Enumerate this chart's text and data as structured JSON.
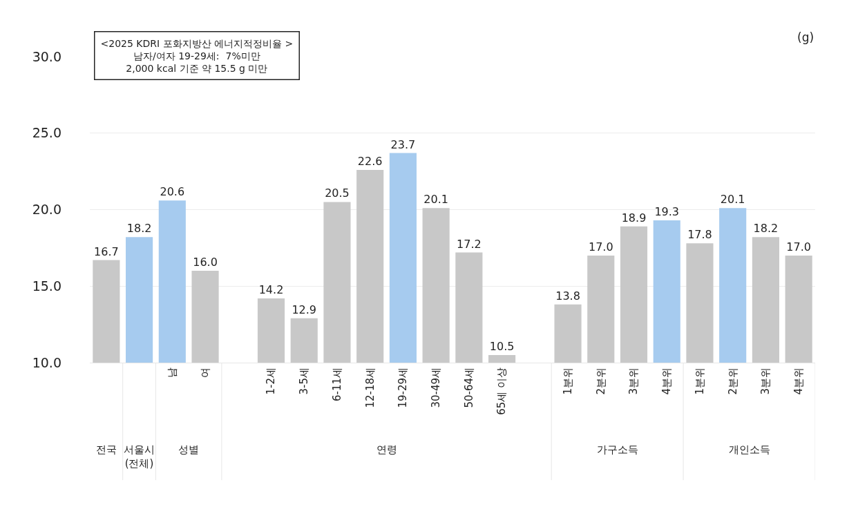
{
  "chart_data": {
    "type": "bar",
    "ylabel": "(g)",
    "categories": [
      null,
      null,
      "남",
      "여",
      null,
      "1-2세",
      "3-5세",
      "6-11세",
      "12-18세",
      "19-29세",
      "30-49세",
      "50-64세",
      "65세 이상",
      null,
      "1분위",
      "2분위",
      "3분위",
      "4분위",
      "1분위",
      "2분위",
      "3분위",
      "4분위"
    ],
    "values": [
      16.7,
      18.2,
      20.6,
      16.0,
      null,
      14.2,
      12.9,
      20.5,
      22.6,
      23.7,
      20.1,
      17.2,
      10.5,
      null,
      13.8,
      17.0,
      18.9,
      19.3,
      17.8,
      20.1,
      18.2,
      17.0
    ],
    "value_labels": [
      "16.7",
      "18.2",
      "20.6",
      "16.0",
      null,
      "14.2",
      "12.9",
      "20.5",
      "22.6",
      "23.7",
      "20.1",
      "17.2",
      "10.5",
      null,
      "13.8",
      "17.0",
      "18.9",
      "19.3",
      "17.8",
      "20.1",
      "18.2",
      "17.0"
    ],
    "colors": [
      "#c8c8c8",
      "#a6cbef",
      "#a6cbef",
      "#c8c8c8",
      "#c8c8c8",
      "#c8c8c8",
      "#c8c8c8",
      "#c8c8c8",
      "#c8c8c8",
      "#a6cbef",
      "#c8c8c8",
      "#c8c8c8",
      "#c8c8c8",
      "#c8c8c8",
      "#c8c8c8",
      "#c8c8c8",
      "#c8c8c8",
      "#a6cbef",
      "#c8c8c8",
      "#a6cbef",
      "#c8c8c8",
      "#c8c8c8"
    ],
    "ylim": [
      10,
      30
    ],
    "yticks": [
      {
        "value": 10,
        "label": "10.0"
      },
      {
        "value": 15,
        "label": "15.0"
      },
      {
        "value": 20,
        "label": "20.0"
      },
      {
        "value": 25,
        "label": "25.0"
      },
      {
        "value": 30,
        "label": "30.0"
      }
    ],
    "grid": "y",
    "annotations": [
      "<2025 KDRI 포화지방산 에너지적정비율 >\n남자/여자 19-29세:  7%미만\n2,000 kcal 기준 약 15.5 g 미만",
      "전국",
      "서울시\n(전체)",
      "성별",
      "연령",
      "가구소득",
      "개인소득"
    ]
  }
}
